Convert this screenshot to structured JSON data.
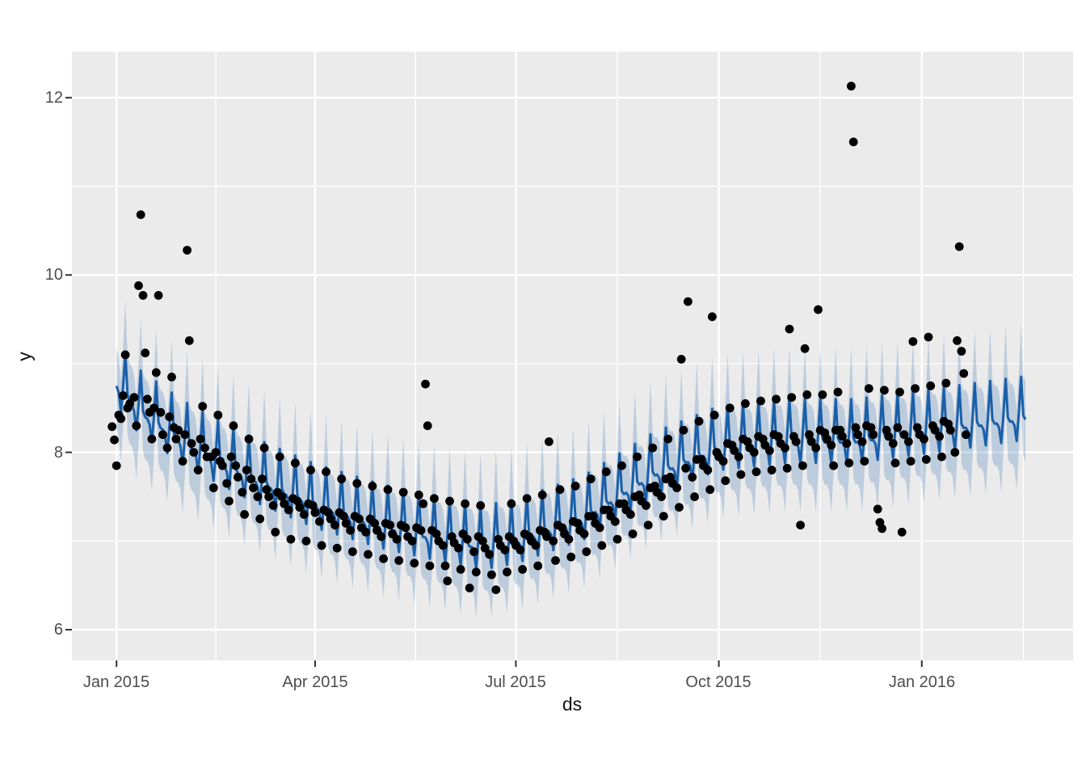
{
  "figure": {
    "background": "#ffffff",
    "panel_background": "#ebebeb",
    "grid_major_color": "#ffffff",
    "grid_minor_color": "#ffffff",
    "tick_mark_color": "#333333",
    "tick_label_color": "#4d4d4d",
    "axis_title_color": "#111111"
  },
  "chart_data": {
    "type": "scatter",
    "description": "Prophet-style time-series forecast: black daily observations, blue forecast line with weekly seasonality, light blue uncertainty band",
    "title": "",
    "xlabel": "ds",
    "ylabel": "y",
    "x_axis_unit": "days since 2015-01-01",
    "x_range_days": [
      -20,
      433
    ],
    "y_axis_range": [
      5.65,
      12.52
    ],
    "grid": true,
    "legend": "none",
    "x_ticks": [
      {
        "label": "Jan 2015",
        "t": 0
      },
      {
        "label": "Apr 2015",
        "t": 90
      },
      {
        "label": "Jul 2015",
        "t": 181
      },
      {
        "label": "Oct 2015",
        "t": 273
      },
      {
        "label": "Jan 2016",
        "t": 365
      }
    ],
    "x_minor_ticks_t": [
      45,
      135.5,
      227,
      319,
      411
    ],
    "y_ticks": [
      {
        "label": "6",
        "value": 6
      },
      {
        "label": "8",
        "value": 8
      },
      {
        "label": "10",
        "value": 10
      },
      {
        "label": "12",
        "value": 12
      }
    ],
    "y_minor_ticks": [
      7,
      9,
      11
    ],
    "point_color": "#000000",
    "point_radius_px": 5.4,
    "forecast": {
      "line_color": "#1a5fa8",
      "band_fill": "rgba(26,95,168,0.22)",
      "t_start": 0,
      "t_end": 412,
      "trend_keypoints": [
        [
          0,
          8.82
        ],
        [
          10,
          8.52
        ],
        [
          31,
          8.15
        ],
        [
          59,
          7.78
        ],
        [
          90,
          7.45
        ],
        [
          120,
          7.22
        ],
        [
          151,
          7.05
        ],
        [
          166,
          6.98
        ],
        [
          181,
          7.05
        ],
        [
          212,
          7.32
        ],
        [
          243,
          7.8
        ],
        [
          273,
          8.1
        ],
        [
          304,
          8.18
        ],
        [
          334,
          8.18
        ],
        [
          365,
          8.28
        ],
        [
          412,
          8.44
        ]
      ],
      "weekly_offsets_mon_first": [
        0.42,
        -0.02,
        -0.07,
        -0.07,
        -0.12,
        -0.3,
        0.02
      ],
      "weekday_of_t0": "Thu",
      "band_halfwidth": 0.45,
      "band_seasonality_scale": 1.35
    },
    "points": [
      [
        -2,
        8.29
      ],
      [
        -1,
        8.14
      ],
      [
        0,
        7.85
      ],
      [
        1,
        8.42
      ],
      [
        2,
        8.38
      ],
      [
        3,
        8.64
      ],
      [
        4,
        9.1
      ],
      [
        5,
        8.5
      ],
      [
        6,
        8.55
      ],
      [
        8,
        8.62
      ],
      [
        9,
        8.3
      ],
      [
        10,
        9.88
      ],
      [
        11,
        10.68
      ],
      [
        12,
        9.77
      ],
      [
        13,
        9.12
      ],
      [
        14,
        8.6
      ],
      [
        15,
        8.45
      ],
      [
        16,
        8.15
      ],
      [
        17,
        8.5
      ],
      [
        18,
        8.9
      ],
      [
        19,
        9.77
      ],
      [
        20,
        8.45
      ],
      [
        21,
        8.2
      ],
      [
        23,
        8.05
      ],
      [
        24,
        8.4
      ],
      [
        25,
        8.85
      ],
      [
        26,
        8.28
      ],
      [
        27,
        8.15
      ],
      [
        28,
        8.25
      ],
      [
        30,
        7.9
      ],
      [
        31,
        8.2
      ],
      [
        32,
        10.28
      ],
      [
        33,
        9.26
      ],
      [
        34,
        8.1
      ],
      [
        35,
        8.0
      ],
      [
        37,
        7.8
      ],
      [
        38,
        8.15
      ],
      [
        39,
        8.52
      ],
      [
        40,
        8.05
      ],
      [
        41,
        7.95
      ],
      [
        43,
        7.95
      ],
      [
        44,
        7.6
      ],
      [
        45,
        8.0
      ],
      [
        46,
        8.42
      ],
      [
        47,
        7.9
      ],
      [
        48,
        7.85
      ],
      [
        50,
        7.65
      ],
      [
        51,
        7.45
      ],
      [
        52,
        7.95
      ],
      [
        53,
        8.3
      ],
      [
        54,
        7.85
      ],
      [
        55,
        7.72
      ],
      [
        57,
        7.55
      ],
      [
        58,
        7.3
      ],
      [
        59,
        7.8
      ],
      [
        60,
        8.15
      ],
      [
        61,
        7.7
      ],
      [
        62,
        7.6
      ],
      [
        64,
        7.5
      ],
      [
        65,
        7.25
      ],
      [
        66,
        7.7
      ],
      [
        67,
        8.05
      ],
      [
        68,
        7.58
      ],
      [
        69,
        7.5
      ],
      [
        71,
        7.4
      ],
      [
        72,
        7.1
      ],
      [
        73,
        7.55
      ],
      [
        74,
        7.95
      ],
      [
        75,
        7.5
      ],
      [
        76,
        7.42
      ],
      [
        78,
        7.35
      ],
      [
        79,
        7.02
      ],
      [
        80,
        7.48
      ],
      [
        81,
        7.88
      ],
      [
        82,
        7.45
      ],
      [
        83,
        7.38
      ],
      [
        85,
        7.3
      ],
      [
        86,
        7.0
      ],
      [
        87,
        7.42
      ],
      [
        88,
        7.8
      ],
      [
        89,
        7.4
      ],
      [
        90,
        7.32
      ],
      [
        92,
        7.22
      ],
      [
        93,
        6.95
      ],
      [
        94,
        7.35
      ],
      [
        95,
        7.78
      ],
      [
        96,
        7.32
      ],
      [
        97,
        7.25
      ],
      [
        99,
        7.18
      ],
      [
        100,
        6.92
      ],
      [
        101,
        7.32
      ],
      [
        102,
        7.7
      ],
      [
        103,
        7.28
      ],
      [
        104,
        7.2
      ],
      [
        106,
        7.12
      ],
      [
        107,
        6.88
      ],
      [
        108,
        7.28
      ],
      [
        109,
        7.65
      ],
      [
        110,
        7.25
      ],
      [
        111,
        7.15
      ],
      [
        113,
        7.1
      ],
      [
        114,
        6.85
      ],
      [
        115,
        7.25
      ],
      [
        116,
        7.62
      ],
      [
        117,
        7.2
      ],
      [
        118,
        7.12
      ],
      [
        120,
        7.05
      ],
      [
        121,
        6.8
      ],
      [
        122,
        7.2
      ],
      [
        123,
        7.58
      ],
      [
        124,
        7.18
      ],
      [
        125,
        7.08
      ],
      [
        127,
        7.02
      ],
      [
        128,
        6.78
      ],
      [
        129,
        7.18
      ],
      [
        130,
        7.55
      ],
      [
        131,
        7.15
      ],
      [
        132,
        7.05
      ],
      [
        134,
        7.0
      ],
      [
        135,
        6.75
      ],
      [
        136,
        7.15
      ],
      [
        137,
        7.52
      ],
      [
        138,
        7.12
      ],
      [
        139,
        7.42
      ],
      [
        140,
        8.77
      ],
      [
        141,
        8.3
      ],
      [
        142,
        6.72
      ],
      [
        143,
        7.12
      ],
      [
        144,
        7.48
      ],
      [
        145,
        7.08
      ],
      [
        146,
        7.0
      ],
      [
        148,
        6.95
      ],
      [
        149,
        6.72
      ],
      [
        150,
        6.55
      ],
      [
        151,
        7.45
      ],
      [
        152,
        7.05
      ],
      [
        153,
        6.98
      ],
      [
        155,
        6.92
      ],
      [
        156,
        6.68
      ],
      [
        157,
        7.08
      ],
      [
        158,
        7.42
      ],
      [
        159,
        7.02
      ],
      [
        160,
        6.47
      ],
      [
        162,
        6.88
      ],
      [
        163,
        6.65
      ],
      [
        164,
        7.05
      ],
      [
        165,
        7.4
      ],
      [
        166,
        7.0
      ],
      [
        167,
        6.92
      ],
      [
        169,
        6.85
      ],
      [
        170,
        6.62
      ],
      [
        172,
        6.45
      ],
      [
        173,
        7.02
      ],
      [
        174,
        6.95
      ],
      [
        176,
        6.9
      ],
      [
        177,
        6.65
      ],
      [
        178,
        7.05
      ],
      [
        179,
        7.42
      ],
      [
        180,
        7.0
      ],
      [
        181,
        6.95
      ],
      [
        183,
        6.9
      ],
      [
        184,
        6.68
      ],
      [
        185,
        7.08
      ],
      [
        186,
        7.48
      ],
      [
        187,
        7.05
      ],
      [
        188,
        7.0
      ],
      [
        190,
        6.95
      ],
      [
        191,
        6.72
      ],
      [
        192,
        7.12
      ],
      [
        193,
        7.52
      ],
      [
        194,
        7.1
      ],
      [
        195,
        7.05
      ],
      [
        196,
        8.12
      ],
      [
        198,
        7.0
      ],
      [
        199,
        6.78
      ],
      [
        200,
        7.18
      ],
      [
        201,
        7.58
      ],
      [
        202,
        7.15
      ],
      [
        203,
        7.08
      ],
      [
        205,
        7.02
      ],
      [
        206,
        6.82
      ],
      [
        207,
        7.22
      ],
      [
        208,
        7.62
      ],
      [
        209,
        7.2
      ],
      [
        210,
        7.12
      ],
      [
        212,
        7.08
      ],
      [
        213,
        6.88
      ],
      [
        214,
        7.28
      ],
      [
        215,
        7.7
      ],
      [
        216,
        7.28
      ],
      [
        217,
        7.2
      ],
      [
        219,
        7.15
      ],
      [
        220,
        6.95
      ],
      [
        221,
        7.35
      ],
      [
        222,
        7.78
      ],
      [
        223,
        7.35
      ],
      [
        224,
        7.28
      ],
      [
        226,
        7.22
      ],
      [
        227,
        7.02
      ],
      [
        228,
        7.42
      ],
      [
        229,
        7.85
      ],
      [
        230,
        7.42
      ],
      [
        231,
        7.35
      ],
      [
        233,
        7.3
      ],
      [
        234,
        7.08
      ],
      [
        235,
        7.5
      ],
      [
        236,
        7.95
      ],
      [
        237,
        7.52
      ],
      [
        238,
        7.45
      ],
      [
        240,
        7.4
      ],
      [
        241,
        7.18
      ],
      [
        242,
        7.6
      ],
      [
        243,
        8.05
      ],
      [
        244,
        7.62
      ],
      [
        245,
        7.55
      ],
      [
        247,
        7.5
      ],
      [
        248,
        7.28
      ],
      [
        249,
        7.7
      ],
      [
        250,
        8.15
      ],
      [
        251,
        7.72
      ],
      [
        252,
        7.65
      ],
      [
        254,
        7.6
      ],
      [
        255,
        7.38
      ],
      [
        256,
        9.05
      ],
      [
        257,
        8.25
      ],
      [
        258,
        7.82
      ],
      [
        259,
        9.7
      ],
      [
        261,
        7.72
      ],
      [
        262,
        7.5
      ],
      [
        263,
        7.92
      ],
      [
        264,
        8.35
      ],
      [
        265,
        7.92
      ],
      [
        266,
        7.85
      ],
      [
        268,
        7.8
      ],
      [
        269,
        7.58
      ],
      [
        270,
        9.53
      ],
      [
        271,
        8.42
      ],
      [
        272,
        8.0
      ],
      [
        273,
        7.95
      ],
      [
        275,
        7.9
      ],
      [
        276,
        7.68
      ],
      [
        277,
        8.1
      ],
      [
        278,
        8.5
      ],
      [
        279,
        8.08
      ],
      [
        280,
        8.02
      ],
      [
        282,
        7.95
      ],
      [
        283,
        7.75
      ],
      [
        284,
        8.15
      ],
      [
        285,
        8.55
      ],
      [
        286,
        8.12
      ],
      [
        287,
        8.05
      ],
      [
        289,
        8.0
      ],
      [
        290,
        7.78
      ],
      [
        291,
        8.18
      ],
      [
        292,
        8.58
      ],
      [
        293,
        8.15
      ],
      [
        294,
        8.08
      ],
      [
        296,
        8.02
      ],
      [
        297,
        7.8
      ],
      [
        298,
        8.2
      ],
      [
        299,
        8.6
      ],
      [
        300,
        8.18
      ],
      [
        301,
        8.1
      ],
      [
        303,
        8.05
      ],
      [
        304,
        7.82
      ],
      [
        305,
        9.39
      ],
      [
        306,
        8.62
      ],
      [
        307,
        8.18
      ],
      [
        308,
        8.12
      ],
      [
        310,
        7.18
      ],
      [
        311,
        7.85
      ],
      [
        312,
        9.17
      ],
      [
        313,
        8.65
      ],
      [
        314,
        8.2
      ],
      [
        315,
        8.12
      ],
      [
        317,
        8.05
      ],
      [
        318,
        9.61
      ],
      [
        319,
        8.25
      ],
      [
        320,
        8.65
      ],
      [
        321,
        8.22
      ],
      [
        322,
        8.15
      ],
      [
        324,
        8.08
      ],
      [
        325,
        7.85
      ],
      [
        326,
        8.25
      ],
      [
        327,
        8.68
      ],
      [
        328,
        8.25
      ],
      [
        329,
        8.18
      ],
      [
        331,
        8.1
      ],
      [
        332,
        7.88
      ],
      [
        333,
        12.13
      ],
      [
        334,
        11.5
      ],
      [
        335,
        8.28
      ],
      [
        336,
        8.2
      ],
      [
        338,
        8.12
      ],
      [
        339,
        7.9
      ],
      [
        340,
        8.3
      ],
      [
        341,
        8.72
      ],
      [
        342,
        8.28
      ],
      [
        343,
        8.2
      ],
      [
        345,
        7.36
      ],
      [
        346,
        7.21
      ],
      [
        347,
        7.14
      ],
      [
        348,
        8.7
      ],
      [
        349,
        8.25
      ],
      [
        350,
        8.18
      ],
      [
        352,
        8.1
      ],
      [
        353,
        7.88
      ],
      [
        354,
        8.28
      ],
      [
        355,
        8.68
      ],
      [
        356,
        7.1
      ],
      [
        357,
        8.2
      ],
      [
        359,
        8.12
      ],
      [
        360,
        7.9
      ],
      [
        361,
        9.25
      ],
      [
        362,
        8.72
      ],
      [
        363,
        8.28
      ],
      [
        364,
        8.2
      ],
      [
        366,
        8.15
      ],
      [
        367,
        7.92
      ],
      [
        368,
        9.3
      ],
      [
        369,
        8.75
      ],
      [
        370,
        8.3
      ],
      [
        371,
        8.25
      ],
      [
        373,
        8.18
      ],
      [
        374,
        7.95
      ],
      [
        375,
        8.35
      ],
      [
        376,
        8.78
      ],
      [
        377,
        8.32
      ],
      [
        378,
        8.25
      ],
      [
        380,
        8.0
      ],
      [
        381,
        9.26
      ],
      [
        382,
        10.32
      ],
      [
        383,
        9.14
      ],
      [
        384,
        8.89
      ],
      [
        385,
        8.2
      ]
    ]
  }
}
